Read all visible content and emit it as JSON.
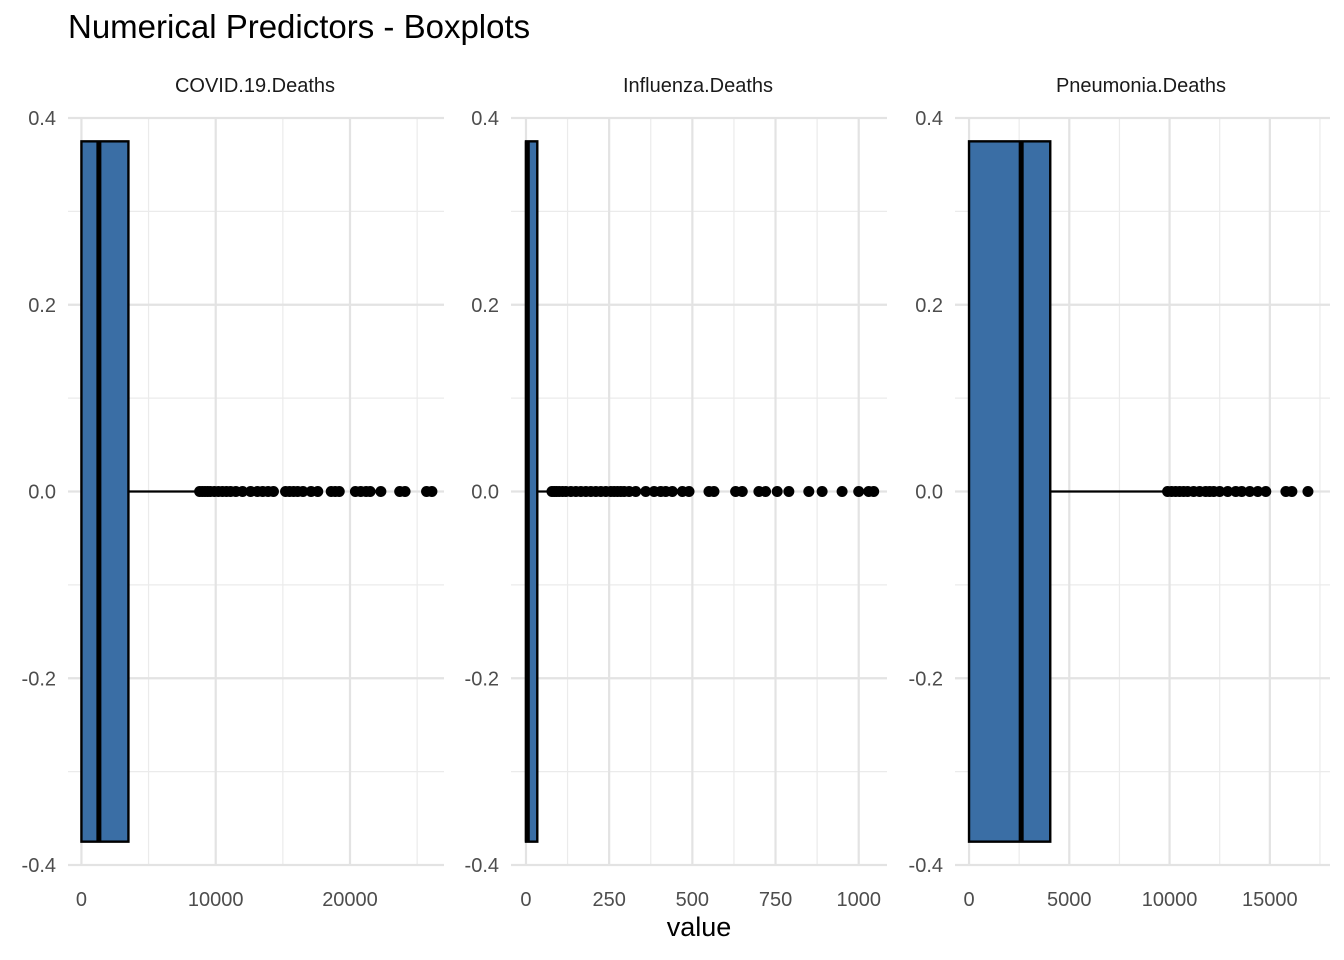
{
  "chart_data": {
    "type": "boxplot",
    "title": "Numerical Predictors - Boxplots",
    "xlabel": "value",
    "ylabel": "",
    "ylim": [
      -0.4,
      0.4
    ],
    "y_ticks": [
      0.4,
      0.2,
      0.0,
      -0.2,
      -0.4
    ],
    "y_tick_labels": [
      "0.4",
      "0.2",
      "0.0",
      "-0.2",
      "-0.4"
    ],
    "grid": true,
    "box_color": "#3a6ea5",
    "panels": [
      {
        "label": "COVID.19.Deaths",
        "xlim": [
          -1000,
          27000
        ],
        "x_ticks": [
          0,
          10000,
          20000
        ],
        "x_tick_labels": [
          "0",
          "10000",
          "20000"
        ],
        "minor_ticks": [
          5000,
          15000,
          25000
        ],
        "q1": 0,
        "median": 1300,
        "q3": 3500,
        "whisker_low": 0,
        "whisker_high": 8600,
        "outliers": [
          8800,
          9000,
          9200,
          9400,
          9600,
          9900,
          10200,
          10500,
          10800,
          11100,
          11500,
          12000,
          12600,
          13100,
          13500,
          13900,
          14300,
          15200,
          15500,
          15800,
          16100,
          16500,
          17100,
          17600,
          18600,
          18900,
          19200,
          20400,
          20800,
          21200,
          21500,
          22300,
          23700,
          24100,
          25700,
          26100
        ]
      },
      {
        "label": "Influenza.Deaths",
        "xlim": [
          -45,
          1085
        ],
        "x_ticks": [
          0,
          250,
          500,
          750,
          1000
        ],
        "x_tick_labels": [
          "0",
          "250",
          "500",
          "750",
          "1000"
        ],
        "minor_ticks": [
          125,
          375,
          625,
          875
        ],
        "q1": 0,
        "median": 4,
        "q3": 34,
        "whisker_low": 0,
        "whisker_high": 75,
        "outliers": [
          78,
          85,
          92,
          100,
          110,
          120,
          135,
          150,
          165,
          180,
          195,
          210,
          225,
          240,
          255,
          265,
          275,
          285,
          295,
          310,
          330,
          360,
          385,
          405,
          420,
          440,
          470,
          490,
          550,
          565,
          630,
          650,
          700,
          720,
          755,
          790,
          850,
          890,
          950,
          1000,
          1030,
          1045
        ]
      },
      {
        "label": "Pneumonia.Deaths",
        "xlim": [
          -700,
          18000
        ],
        "x_ticks": [
          0,
          5000,
          10000,
          15000
        ],
        "x_tick_labels": [
          "0",
          "5000",
          "10000",
          "15000"
        ],
        "minor_ticks": [
          2500,
          7500,
          12500,
          17500
        ],
        "q1": 0,
        "median": 2600,
        "q3": 4050,
        "whisker_low": 0,
        "whisker_high": 9700,
        "outliers": [
          9900,
          10100,
          10300,
          10500,
          10700,
          10900,
          11200,
          11500,
          11800,
          12000,
          12200,
          12500,
          12900,
          13300,
          13600,
          14000,
          14400,
          14800,
          15800,
          16100,
          16900
        ]
      }
    ]
  }
}
